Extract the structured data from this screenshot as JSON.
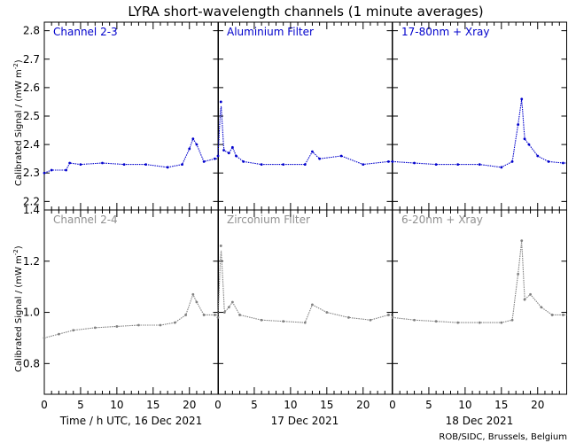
{
  "figure": {
    "title": "LYRA short-wavelength channels (1 minute averages)",
    "credit": "ROB/SIDC, Brussels, Belgium",
    "ylabel_main": "Calibrated Signal / (mW m",
    "ylabel_sup": "-2",
    "ylabel_close": ")",
    "day_labels": [
      "Time / h UTC, 16 Dec 2021",
      "17 Dec 2021",
      "18 Dec 2021"
    ],
    "x_tick_labels": [
      "0",
      "5",
      "10",
      "15",
      "20"
    ],
    "top_y_tick_labels": [
      "2.2",
      "2.3",
      "2.4",
      "2.5",
      "2.6",
      "2.7",
      "2.8"
    ],
    "bottom_y_tick_labels": [
      "0.8",
      "1.0",
      "1.2",
      "1.4"
    ]
  },
  "colors": {
    "top_series": "#0000cc",
    "bottom_series": "#808080",
    "top_title": "#0000cc",
    "bottom_title": "#909090"
  },
  "chart_data": [
    {
      "type": "scatter",
      "title": "Channel 2-3",
      "xlabel": "Time / h UTC, 16 Dec 2021",
      "ylabel": "Calibrated Signal / (mW m-2)",
      "xlim": [
        0,
        24
      ],
      "ylim": [
        2.17,
        2.83
      ],
      "series": [
        {
          "x": [
            0,
            1,
            3,
            3.5,
            5,
            8,
            11,
            14,
            17,
            19,
            20,
            20.5,
            21,
            22,
            23.5
          ],
          "values": [
            2.3,
            2.31,
            2.31,
            2.335,
            2.33,
            2.335,
            2.33,
            2.33,
            2.32,
            2.33,
            2.385,
            2.42,
            2.4,
            2.34,
            2.35
          ]
        }
      ]
    },
    {
      "type": "scatter",
      "title": "Aluminium Filter",
      "xlabel": "17 Dec 2021",
      "ylabel": "Calibrated Signal / (mW m-2)",
      "xlim": [
        0,
        24
      ],
      "ylim": [
        2.17,
        2.83
      ],
      "series": [
        {
          "x": [
            0,
            0.4,
            0.8,
            1.5,
            2,
            2.5,
            3.5,
            6,
            9,
            12,
            13,
            14,
            17,
            20,
            23.5
          ],
          "values": [
            2.36,
            2.55,
            2.38,
            2.37,
            2.39,
            2.36,
            2.34,
            2.33,
            2.33,
            2.33,
            2.375,
            2.35,
            2.36,
            2.33,
            2.34
          ]
        }
      ]
    },
    {
      "type": "scatter",
      "title": "17-80nm + Xray",
      "xlabel": "18 Dec 2021",
      "ylabel": "Calibrated Signal / (mW m-2)",
      "xlim": [
        0,
        24
      ],
      "ylim": [
        2.17,
        2.83
      ],
      "series": [
        {
          "x": [
            0,
            3,
            6,
            9,
            12,
            15,
            16.5,
            17.3,
            17.8,
            18.2,
            18.8,
            20,
            21.5,
            23.5
          ],
          "values": [
            2.34,
            2.335,
            2.33,
            2.33,
            2.33,
            2.32,
            2.34,
            2.47,
            2.56,
            2.42,
            2.4,
            2.36,
            2.34,
            2.335
          ]
        }
      ]
    },
    {
      "type": "scatter",
      "title": "Channel 2-4",
      "xlabel": "Time / h UTC, 16 Dec 2021",
      "ylabel": "Calibrated Signal / (mW m-2)",
      "xlim": [
        0,
        24
      ],
      "ylim": [
        0.68,
        1.4
      ],
      "series": [
        {
          "x": [
            0,
            2,
            4,
            7,
            10,
            13,
            16,
            18,
            19.5,
            20.5,
            21,
            22,
            23.5
          ],
          "values": [
            0.9,
            0.915,
            0.93,
            0.94,
            0.945,
            0.95,
            0.95,
            0.96,
            0.99,
            1.07,
            1.04,
            0.99,
            0.99
          ]
        }
      ]
    },
    {
      "type": "scatter",
      "title": "Zirconium Filter",
      "xlabel": "17 Dec 2021",
      "ylabel": "Calibrated Signal / (mW m-2)",
      "xlim": [
        0,
        24
      ],
      "ylim": [
        0.68,
        1.4
      ],
      "series": [
        {
          "x": [
            0,
            0.4,
            0.9,
            1.5,
            2,
            3,
            6,
            9,
            12,
            13,
            15,
            18,
            21,
            23.5
          ],
          "values": [
            0.98,
            1.26,
            1.0,
            1.02,
            1.04,
            0.99,
            0.97,
            0.965,
            0.96,
            1.03,
            1.0,
            0.98,
            0.97,
            0.99
          ]
        }
      ]
    },
    {
      "type": "scatter",
      "title": "6-20nm + Xray",
      "xlabel": "18 Dec 2021",
      "ylabel": "Calibrated Signal / (mW m-2)",
      "xlim": [
        0,
        24
      ],
      "ylim": [
        0.68,
        1.4
      ],
      "series": [
        {
          "x": [
            0,
            3,
            6,
            9,
            12,
            15,
            16.5,
            17.3,
            17.8,
            18.2,
            19,
            20.5,
            22,
            23.5
          ],
          "values": [
            0.98,
            0.97,
            0.965,
            0.96,
            0.96,
            0.96,
            0.97,
            1.15,
            1.28,
            1.05,
            1.07,
            1.02,
            0.99,
            0.99
          ]
        }
      ]
    }
  ]
}
